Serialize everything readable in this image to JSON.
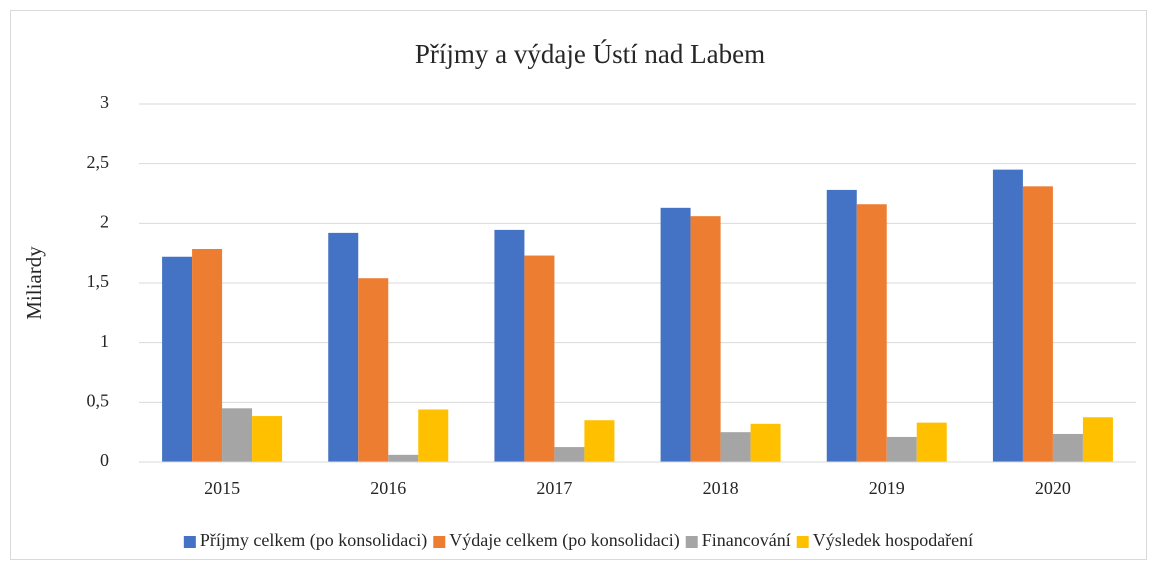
{
  "chart_data": {
    "type": "bar",
    "title": "Příjmy a výdaje Ústí nad Labem",
    "y_label": "Miliardy",
    "categories": [
      "2015",
      "2016",
      "2017",
      "2018",
      "2019",
      "2020"
    ],
    "series": [
      {
        "name": "Příjmy celkem (po konsolidaci)",
        "color": "#4472c4",
        "values": [
          1.72,
          1.92,
          1.945,
          2.13,
          2.28,
          2.45
        ]
      },
      {
        "name": "Výdaje celkem (po konsolidaci)",
        "color": "#ed7d31",
        "values": [
          1.785,
          1.54,
          1.73,
          2.06,
          2.16,
          2.31
        ]
      },
      {
        "name": "Financování",
        "color": "#a5a5a5",
        "values": [
          0.45,
          0.06,
          0.125,
          0.25,
          0.21,
          0.235
        ]
      },
      {
        "name": "Výsledek hospodaření",
        "color": "#ffc000",
        "values": [
          0.385,
          0.44,
          0.35,
          0.32,
          0.33,
          0.375
        ]
      }
    ],
    "ylim": [
      0,
      3
    ],
    "yticks": [
      0,
      {
        "value": 0.5,
        "label": "0,5"
      },
      1,
      {
        "value": 1.5,
        "label": "1,5"
      },
      2,
      {
        "value": 2.5,
        "label": "2,5"
      },
      3
    ],
    "grid": true,
    "legend": "bottom"
  }
}
